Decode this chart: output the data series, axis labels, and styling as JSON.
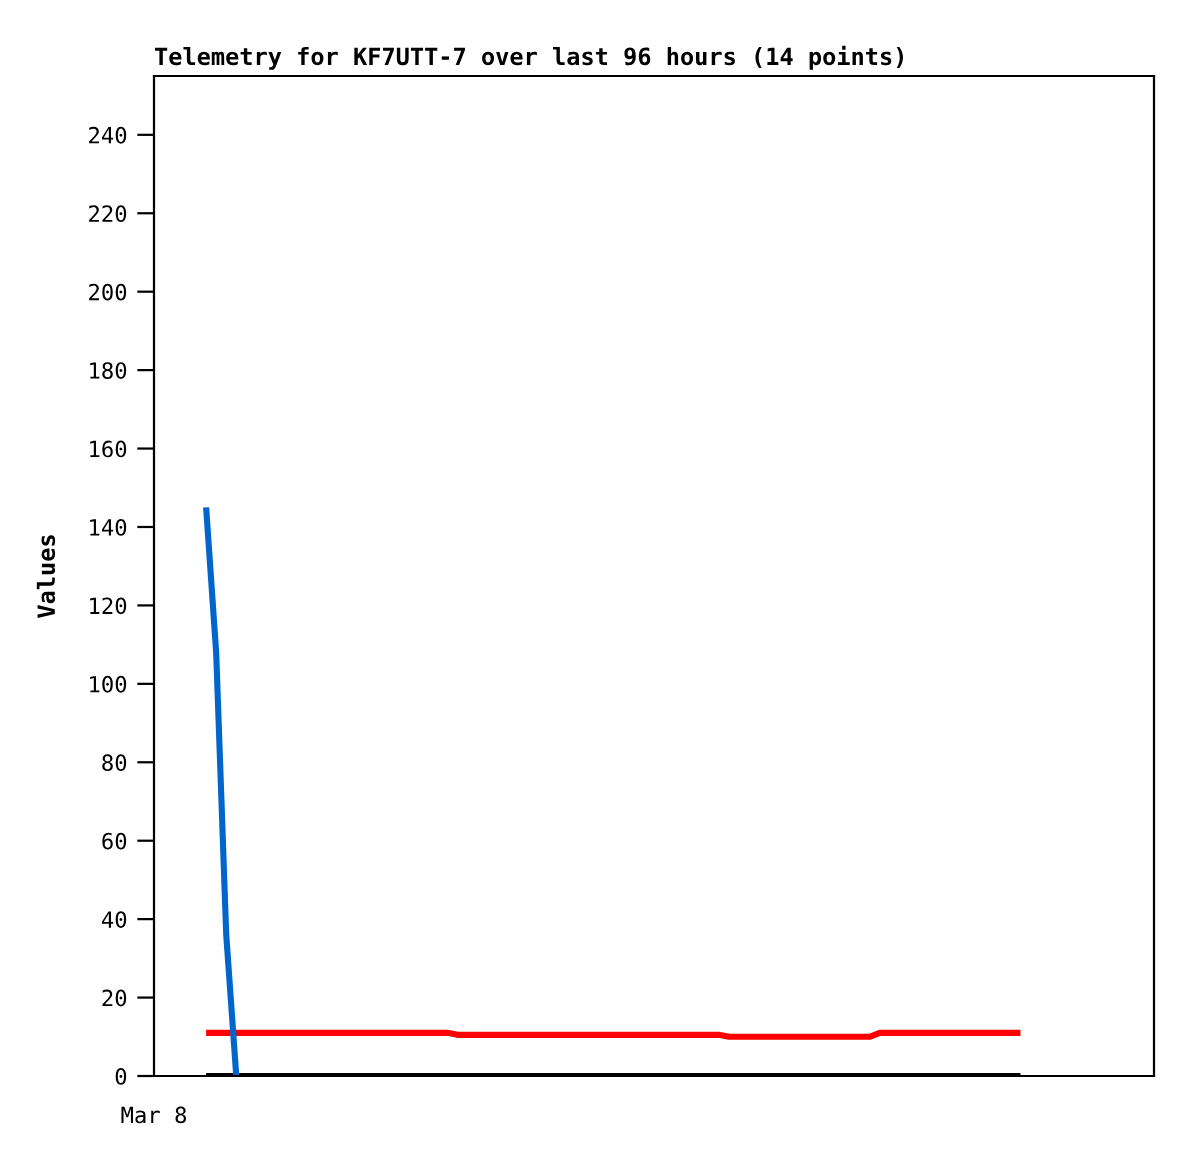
{
  "chart_data": {
    "type": "line",
    "title": "Telemetry for KF7UTT-7 over last 96 hours (14 points)",
    "ylabel": "Values",
    "categories": [
      null,
      null,
      null,
      null,
      null,
      null,
      null,
      null,
      null,
      null,
      null,
      null,
      null,
      null,
      null,
      null,
      null,
      null,
      null,
      null,
      null,
      null,
      null,
      null,
      null,
      null,
      null,
      null,
      null,
      null,
      null,
      null,
      null,
      null,
      null,
      null,
      null,
      null,
      null,
      null,
      null,
      null,
      null,
      null,
      null,
      null,
      null,
      null,
      null,
      null,
      null,
      null,
      null,
      null,
      null,
      null,
      null,
      null,
      null,
      null,
      null,
      null,
      null,
      null,
      null,
      null,
      null,
      null,
      null,
      null,
      null,
      null,
      null,
      null,
      null,
      null,
      null,
      null,
      null,
      null,
      null,
      null
    ],
    "series": [
      {
        "color": "#ff0000",
        "values": [
          11,
          11,
          11,
          11,
          11,
          11,
          11,
          11,
          11,
          11,
          11,
          11,
          11,
          11,
          11,
          11,
          11,
          11,
          11,
          11,
          11,
          11,
          11,
          11,
          11,
          10.5,
          10.5,
          10.5,
          10.5,
          10.5,
          10.5,
          10.5,
          10.5,
          10.5,
          10.5,
          10.5,
          10.5,
          10.5,
          10.5,
          10.5,
          10.5,
          10.5,
          10.5,
          10.5,
          10.5,
          10.5,
          10.5,
          10.5,
          10.5,
          10.5,
          10.5,
          10.5,
          10,
          10,
          10,
          10,
          10,
          10,
          10,
          10,
          10,
          10,
          10,
          10,
          10,
          10,
          10,
          11,
          11,
          11,
          11,
          11,
          11,
          11,
          11,
          11,
          11,
          11,
          11,
          11,
          11,
          11
        ]
      },
      {
        "color": "#000000",
        "values": [
          0,
          0,
          0,
          0,
          0,
          0,
          0,
          0,
          0,
          0,
          0,
          0,
          0,
          0,
          0,
          0,
          0,
          0,
          0,
          0,
          0,
          0,
          0,
          0,
          0,
          0,
          0,
          0,
          0,
          0,
          0,
          0,
          0,
          0,
          0,
          0,
          0,
          0,
          0,
          0,
          0,
          0,
          0,
          0,
          0,
          0,
          0,
          0,
          0,
          0,
          0,
          0,
          0,
          0,
          0,
          0,
          0,
          0,
          0,
          0,
          0,
          0,
          0,
          0,
          0,
          0,
          0,
          0,
          0,
          0,
          0,
          0,
          0,
          0,
          0,
          0,
          0,
          0,
          0,
          0,
          0,
          0
        ]
      },
      {
        "color": "#0066cc",
        "values": [
          145,
          108,
          36,
          0,
          null,
          null,
          null,
          null,
          null,
          null,
          null,
          null,
          null,
          null,
          null,
          null,
          null,
          null,
          null,
          null,
          null,
          null,
          null,
          null,
          null,
          null,
          null,
          null,
          null,
          null,
          null,
          null,
          null,
          null,
          null,
          null,
          null,
          null,
          null,
          null,
          null,
          null,
          null,
          null,
          null,
          null,
          null,
          null,
          null,
          null,
          null,
          null,
          null,
          null,
          null,
          null,
          null,
          null,
          null,
          null,
          null,
          null,
          null,
          null,
          null,
          null,
          null,
          null,
          null,
          null,
          null,
          null,
          null,
          null,
          null,
          null,
          null,
          null,
          null,
          null,
          null,
          null
        ]
      }
    ],
    "ylim": [
      0,
      255
    ],
    "yticks": [
      0,
      20,
      40,
      60,
      80,
      100,
      120,
      140,
      160,
      180,
      200,
      220,
      240
    ],
    "annotations": [
      "Mar 8"
    ],
    "grid": false,
    "legend": false
  }
}
